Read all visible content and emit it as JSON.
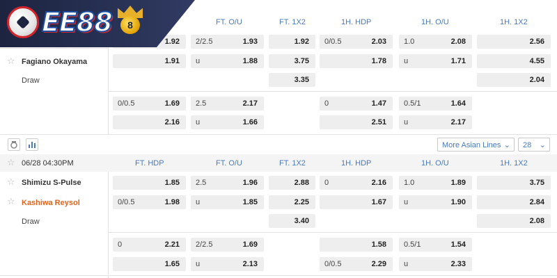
{
  "brand": {
    "logo_text": "EE88"
  },
  "headers": [
    "FT. HDP",
    "FT. O/U",
    "FT. 1X2",
    "1H. HDP",
    "1H. O/U",
    "1H. 1X2"
  ],
  "match1": {
    "home_team": "Fagiano Okayama",
    "draw_label": "Draw",
    "main_rows": [
      [
        "",
        "1.92",
        "2/2.5",
        "1.93",
        "1.92",
        "0/0.5",
        "2.03",
        "1.0",
        "2.08",
        "2.56"
      ],
      [
        "",
        "1.91",
        "u",
        "1.88",
        "3.75",
        "",
        "1.78",
        "u",
        "1.71",
        "4.55"
      ],
      [
        "",
        "",
        "",
        "",
        "3.35",
        "",
        "",
        "",
        "",
        "2.04"
      ]
    ],
    "alt_rows": [
      [
        "0/0.5",
        "1.69",
        "2.5",
        "2.17",
        "0",
        "1.47",
        "0.5/1",
        "1.64"
      ],
      [
        "",
        "2.16",
        "u",
        "1.66",
        "",
        "2.51",
        "u",
        "2.17"
      ]
    ]
  },
  "toolbar": {
    "more_lines": "More Asian Lines",
    "count": "28"
  },
  "match2": {
    "datetime": "06/28 04:30PM",
    "home_team": "Shimizu S-Pulse",
    "away_team": "Kashiwa Reysol",
    "draw_label": "Draw",
    "main_rows": [
      [
        "",
        "1.85",
        "2.5",
        "1.96",
        "2.88",
        "0",
        "2.16",
        "1.0",
        "1.89",
        "3.75"
      ],
      [
        "0/0.5",
        "1.98",
        "u",
        "1.85",
        "2.25",
        "",
        "1.67",
        "u",
        "1.90",
        "2.84"
      ],
      [
        "",
        "",
        "",
        "",
        "3.40",
        "",
        "",
        "",
        "",
        "2.08"
      ]
    ],
    "alt_rows": [
      [
        "0",
        "2.21",
        "2/2.5",
        "1.69",
        "",
        "1.58",
        "0.5/1",
        "1.54"
      ],
      [
        "",
        "1.65",
        "u",
        "2.13",
        "0/0.5",
        "2.29",
        "u",
        "2.33"
      ]
    ]
  }
}
